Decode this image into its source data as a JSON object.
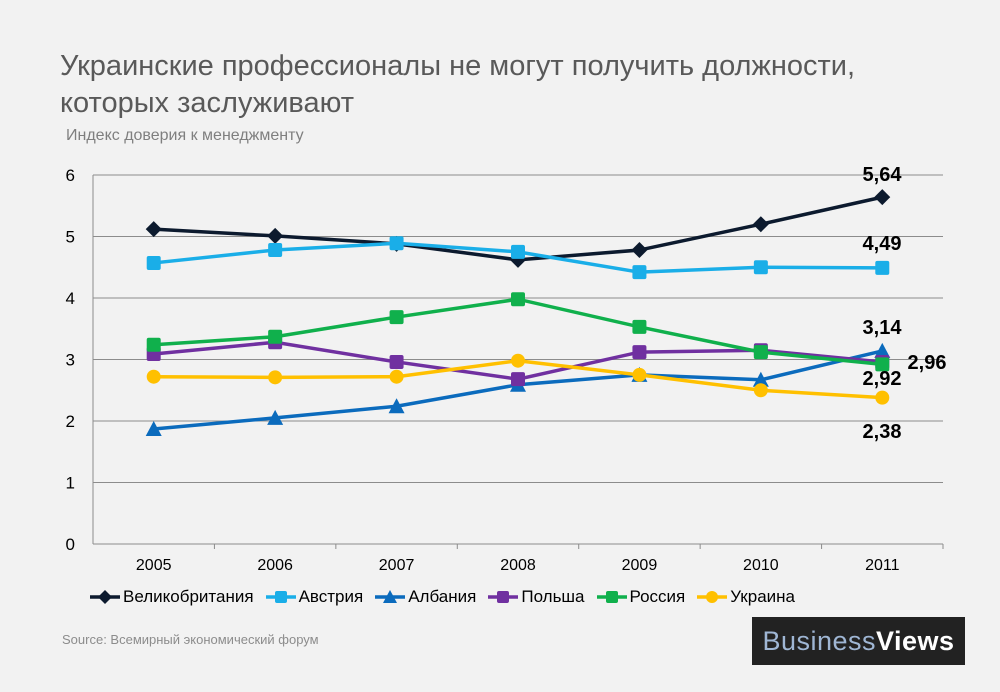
{
  "title": "Украинские профессионалы не могут получить должности, которых заслуживают",
  "subtitle": "Индекс доверия к менеджменту",
  "source": "Source: Всемирный экономический форум",
  "logo": {
    "part1": "Business",
    "part2": "Views"
  },
  "chart_data": {
    "type": "line",
    "categories": [
      "2005",
      "2006",
      "2007",
      "2008",
      "2009",
      "2010",
      "2011"
    ],
    "ylim": [
      0,
      6
    ],
    "yticks": [
      "0",
      "1",
      "2",
      "3",
      "4",
      "5",
      "6"
    ],
    "grid": true,
    "legend_position": "bottom",
    "series": [
      {
        "name": "Великобритания",
        "color": "#0c1a2e",
        "marker": "diamond",
        "values": [
          5.12,
          5.01,
          4.88,
          4.62,
          4.78,
          5.2,
          5.64
        ],
        "end_label": "5,64"
      },
      {
        "name": "Австрия",
        "color": "#1aaee8",
        "marker": "square",
        "values": [
          4.57,
          4.78,
          4.89,
          4.75,
          4.42,
          4.5,
          4.49
        ],
        "end_label": "4,49"
      },
      {
        "name": "Албания",
        "color": "#0b6bbd",
        "marker": "triangle",
        "values": [
          1.87,
          2.05,
          2.24,
          2.59,
          2.75,
          2.67,
          3.14
        ],
        "end_label": "3,14"
      },
      {
        "name": "Польша",
        "color": "#7030a0",
        "marker": "square",
        "values": [
          3.09,
          3.28,
          2.96,
          2.68,
          3.12,
          3.15,
          2.96
        ],
        "end_label": "2,96"
      },
      {
        "name": "Россия",
        "color": "#10b04c",
        "marker": "square",
        "values": [
          3.24,
          3.37,
          3.69,
          3.98,
          3.53,
          3.12,
          2.92
        ],
        "end_label": "2,92"
      },
      {
        "name": "Украина",
        "color": "#ffc000",
        "marker": "circle",
        "values": [
          2.72,
          2.71,
          2.72,
          2.98,
          2.75,
          2.5,
          2.38
        ],
        "end_label": "2,38"
      }
    ]
  }
}
